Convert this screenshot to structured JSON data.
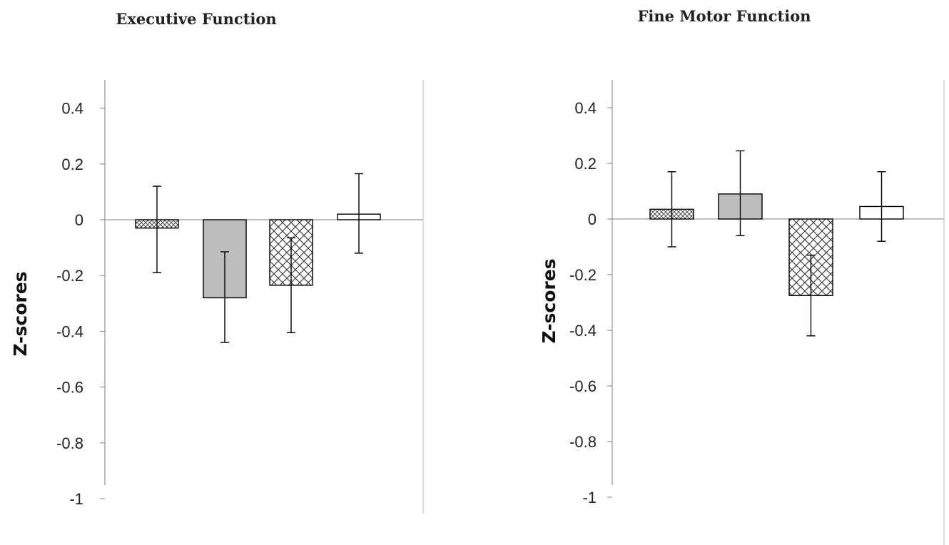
{
  "chart_data": [
    {
      "type": "bar",
      "title": "Executive Function",
      "xlabel": "",
      "ylabel": "Z-scores",
      "ylim": [
        -1,
        0.5
      ],
      "yticks": [
        "0.4",
        "0.2",
        "0",
        "-0.2",
        "-0.4",
        "-0.6",
        "-0.8",
        "-1"
      ],
      "grid": false,
      "series": [
        {
          "pattern": "crosshatch-dense",
          "value": -0.03,
          "err_low": -0.19,
          "err_high": 0.12
        },
        {
          "pattern": "gray",
          "value": -0.28,
          "err_low": -0.44,
          "err_high": -0.115
        },
        {
          "pattern": "crosshatch-open",
          "value": -0.235,
          "err_low": -0.405,
          "err_high": -0.065
        },
        {
          "pattern": "white",
          "value": 0.02,
          "err_low": -0.12,
          "err_high": 0.165
        }
      ]
    },
    {
      "type": "bar",
      "title": "Fine Motor Function",
      "xlabel": "",
      "ylabel": "Z-scores",
      "ylim": [
        -1,
        0.5
      ],
      "yticks": [
        "0.4",
        "0.2",
        "0",
        "-0.2",
        "-0.4",
        "-0.6",
        "-0.8",
        "-1"
      ],
      "grid": false,
      "series": [
        {
          "pattern": "crosshatch-dense",
          "value": 0.035,
          "err_low": -0.1,
          "err_high": 0.17
        },
        {
          "pattern": "gray",
          "value": 0.09,
          "err_low": -0.06,
          "err_high": 0.245
        },
        {
          "pattern": "crosshatch-open",
          "value": -0.275,
          "err_low": -0.42,
          "err_high": -0.13
        },
        {
          "pattern": "white",
          "value": 0.045,
          "err_low": -0.08,
          "err_high": 0.17
        }
      ]
    }
  ],
  "colors": {
    "gray_bar": "#bdbdbd",
    "axis": "#9a9a9a"
  }
}
